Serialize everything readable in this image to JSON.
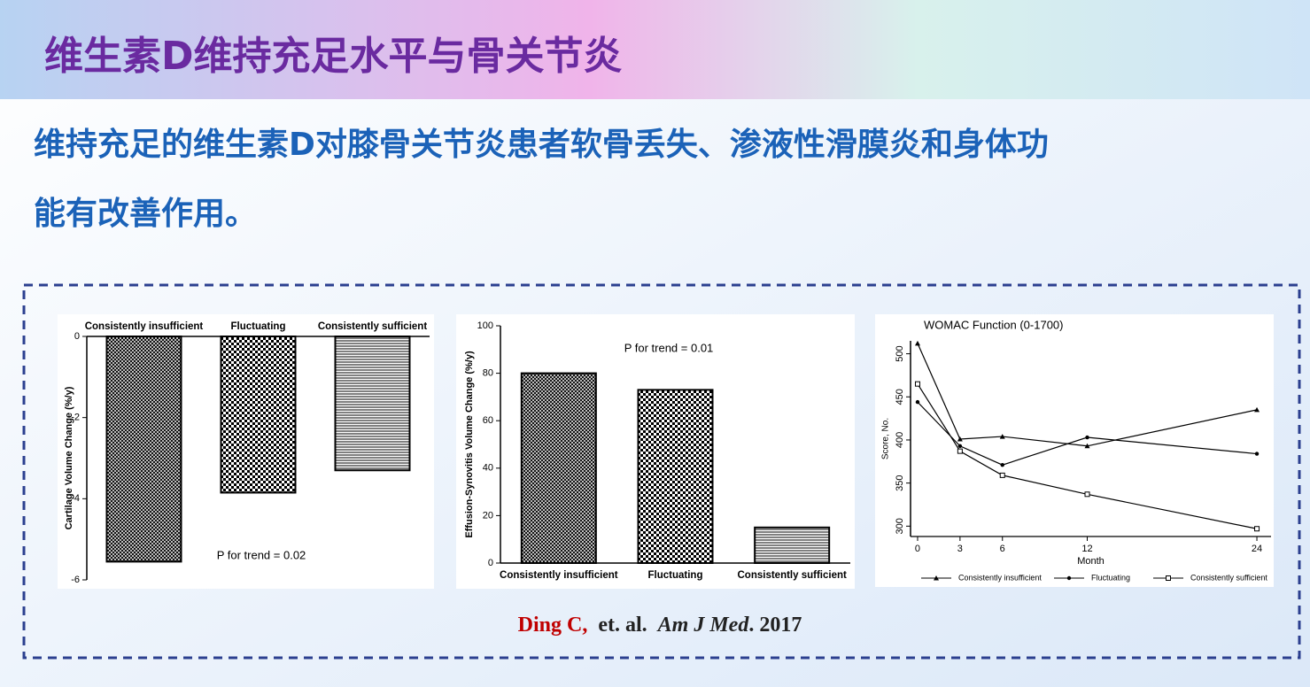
{
  "slide": {
    "title": "维生素D维持充足水平与骨关节炎",
    "subtitle_lines": [
      "维持充足的维生素D对膝骨关节炎患者软骨丢失、渗液性滑膜炎和身体功",
      "能有改善作用。"
    ],
    "citation": [
      "Ding C,",
      "et. al.",
      "Am J Med",
      ". 2017"
    ]
  },
  "chart_data": [
    {
      "type": "bar",
      "y_label": "Cartilage Volume Change (%/y)",
      "annotation": "P for trend = 0.02",
      "categories": [
        "Consistently insufficient",
        "Fluctuating",
        "Consistently sufficient"
      ],
      "values": [
        -5.55,
        -3.85,
        -3.3
      ],
      "patterns": [
        "crosshatch",
        "checker",
        "hlines"
      ],
      "ylim": [
        -6,
        0
      ],
      "yticks": [
        0,
        -2,
        -4,
        -6
      ]
    },
    {
      "type": "bar",
      "y_label": "Effusion-Synovitis Volume Change (%/y)",
      "annotation": "P for trend = 0.01",
      "categories": [
        "Consistently insufficient",
        "Fluctuating",
        "Consistently sufficient"
      ],
      "values": [
        80,
        73,
        15
      ],
      "patterns": [
        "crosshatch",
        "checker",
        "hlines"
      ],
      "ylim": [
        0,
        100
      ],
      "yticks": [
        0,
        20,
        40,
        60,
        80,
        100
      ]
    },
    {
      "type": "line",
      "title": "WOMAC Function (0-1700)",
      "x_label": "Month",
      "y_label": "Score, No.",
      "x": [
        0,
        3,
        6,
        12,
        24
      ],
      "xlim": [
        -0.5,
        25
      ],
      "xticks": [
        0,
        3,
        6,
        12,
        24
      ],
      "ylim": [
        288,
        515
      ],
      "yticks": [
        300,
        350,
        400,
        450,
        500
      ],
      "legend": "bottom",
      "series": [
        {
          "name": "Consistently insufficient",
          "color": "#000000",
          "marker": "triangle",
          "values": [
            512,
            401,
            404,
            393,
            435
          ]
        },
        {
          "name": "Fluctuating",
          "color": "#000000",
          "marker": "circle",
          "values": [
            444,
            393,
            371,
            403,
            384
          ]
        },
        {
          "name": "Consistently sufficient",
          "color": "#000000",
          "marker": "square",
          "values": [
            465,
            387,
            359,
            337,
            297
          ]
        }
      ]
    }
  ]
}
